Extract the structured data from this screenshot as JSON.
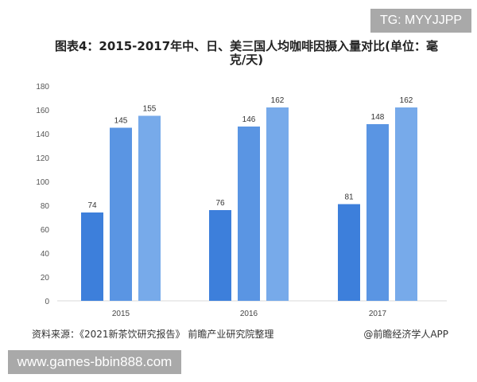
{
  "watermark_top": "TG: MYYJJPP",
  "watermark_bottom": "www.games-bbin888.com",
  "source": "资料来源：《2021新茶饮研究报告》 前瞻产业研究院整理",
  "credit": "@前瞻经济学人APP",
  "chart_data": {
    "type": "bar",
    "title": "图表4：2015-2017年中、日、美三国人均咖啡因摄入量对比(单位：毫克/天)",
    "categories": [
      "2015",
      "2016",
      "2017"
    ],
    "series": [
      {
        "values": [
          74,
          76,
          81
        ],
        "color": "#3d7fdb"
      },
      {
        "values": [
          145,
          146,
          148
        ],
        "color": "#5a95e3"
      },
      {
        "values": [
          155,
          162,
          162
        ],
        "color": "#77aaea"
      }
    ],
    "ylim": [
      0,
      180
    ],
    "yticks": [
      0,
      20,
      40,
      60,
      80,
      100,
      120,
      140,
      160,
      180
    ],
    "xlabel": "",
    "ylabel": "",
    "grid": false,
    "legend": "none"
  }
}
